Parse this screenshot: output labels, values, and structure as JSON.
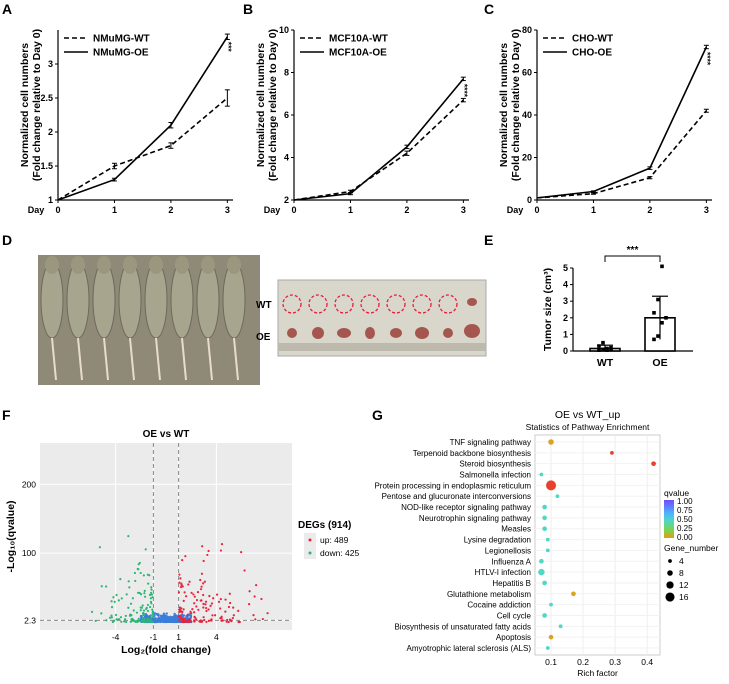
{
  "panels": {
    "A": "A",
    "B": "B",
    "C": "C",
    "D": "D",
    "E": "E",
    "F": "F",
    "G": "G"
  },
  "chart_data": [
    {
      "type": "line",
      "id": "A",
      "xlabel": "Day",
      "ylabel_line1": "Normalized cell numbers",
      "ylabel_line2": "(Fold change relative to Day 0)",
      "x": [
        0,
        1,
        2,
        3
      ],
      "xlim": [
        0,
        3.1
      ],
      "ylim": [
        1,
        3.5
      ],
      "yticks": [
        1,
        1.5,
        2,
        2.5,
        3
      ],
      "series": [
        {
          "name": "NMuMG-WT",
          "style": "dashed",
          "values": [
            1,
            1.5,
            1.8,
            2.5
          ],
          "err": [
            0,
            0.04,
            0.04,
            0.12
          ]
        },
        {
          "name": "NMuMG-OE",
          "style": "solid",
          "values": [
            1,
            1.3,
            2.1,
            3.4
          ],
          "err": [
            0,
            0.02,
            0.04,
            0.04
          ]
        }
      ],
      "significance": "***"
    },
    {
      "type": "line",
      "id": "B",
      "xlabel": "Day",
      "ylabel_line1": "Normalized cell numbers",
      "ylabel_line2": "(Fold change relative to Day 0)",
      "x": [
        0,
        1,
        2,
        3
      ],
      "xlim": [
        0,
        3.1
      ],
      "ylim": [
        2,
        10
      ],
      "yticks": [
        2,
        4,
        6,
        8,
        10
      ],
      "series": [
        {
          "name": "MCF10A-WT",
          "style": "dashed",
          "values": [
            2,
            2.4,
            4.2,
            6.7
          ],
          "err": [
            0,
            0.06,
            0.1,
            0.08
          ]
        },
        {
          "name": "MCF10A-OE",
          "style": "solid",
          "values": [
            2,
            2.3,
            4.5,
            7.7
          ],
          "err": [
            0,
            0.05,
            0.08,
            0.08
          ]
        }
      ],
      "significance": "****"
    },
    {
      "type": "line",
      "id": "C",
      "xlabel": "Day",
      "ylabel_line1": "Normalized cell numbers",
      "ylabel_line2": "(Fold change relative to Day 0)",
      "x": [
        0,
        1,
        2,
        3
      ],
      "xlim": [
        0,
        3.1
      ],
      "ylim": [
        0,
        80
      ],
      "yticks": [
        0,
        20,
        40,
        60,
        80
      ],
      "series": [
        {
          "name": "CHO-WT",
          "style": "dashed",
          "values": [
            1,
            3,
            10.5,
            42
          ],
          "err": [
            0,
            0.3,
            0.5,
            0.7
          ]
        },
        {
          "name": "CHO-OE",
          "style": "solid",
          "values": [
            1,
            4,
            15,
            72
          ],
          "err": [
            0,
            0.3,
            0.6,
            0.8
          ]
        }
      ],
      "significance": "****"
    },
    {
      "type": "bar",
      "id": "E",
      "ylabel": "Tumor size (cm³)",
      "categories": [
        "WT",
        "OE"
      ],
      "values": [
        0.15,
        2.0
      ],
      "err": [
        0.2,
        1.3
      ],
      "ylim": [
        0,
        5
      ],
      "yticks": [
        0,
        1,
        2,
        3,
        4,
        5
      ],
      "points": {
        "WT": [
          0.05,
          0.1,
          0.15,
          0.2,
          0.3,
          0.5,
          0.05,
          0.08
        ],
        "OE": [
          0.7,
          0.9,
          1.7,
          2.0,
          2.3,
          3.1,
          5.1
        ]
      },
      "significance": "***"
    },
    {
      "type": "scatter",
      "id": "F",
      "title": "OE vs WT",
      "xlabel": "Log₂(fold change)",
      "ylabel": "-Log₁₀(qvalue)",
      "xticks": [
        -4,
        -1,
        1,
        4
      ],
      "yticks": [
        "2.3",
        "100",
        "200"
      ],
      "legend_title": "DEGs (914)",
      "legend": [
        {
          "name": "up: 489"
        },
        {
          "name": "down: 425"
        }
      ]
    },
    {
      "type": "scatter",
      "id": "G",
      "title": "OE vs WT_up",
      "subtitle": "Statistics of Pathway Enrichment",
      "xlabel": "Rich factor",
      "xticks": [
        0.1,
        0.2,
        0.3,
        0.4
      ],
      "xlim": [
        0.05,
        0.44
      ],
      "pathways": [
        {
          "name": "TNF signaling pathway",
          "rich": 0.1,
          "size": 8,
          "q": 0.05
        },
        {
          "name": "Terpenoid backbone biosynthesis",
          "rich": 0.29,
          "size": 4,
          "q": 0.02
        },
        {
          "name": "Steroid biosynthesis",
          "rich": 0.42,
          "size": 6,
          "q": 0.0
        },
        {
          "name": "Salmonella infection",
          "rich": 0.07,
          "size": 4,
          "q": 0.6
        },
        {
          "name": "Protein processing in endoplasmic reticulum",
          "rich": 0.1,
          "size": 18,
          "q": 0.0
        },
        {
          "name": "Pentose and glucuronate interconversions",
          "rich": 0.12,
          "size": 4,
          "q": 0.55
        },
        {
          "name": "NOD-like receptor signaling pathway",
          "rich": 0.08,
          "size": 6,
          "q": 0.6
        },
        {
          "name": "Neurotrophin signaling pathway",
          "rich": 0.08,
          "size": 6,
          "q": 0.55
        },
        {
          "name": "Measles",
          "rich": 0.08,
          "size": 6,
          "q": 0.55
        },
        {
          "name": "Lysine degradation",
          "rich": 0.09,
          "size": 4,
          "q": 0.55
        },
        {
          "name": "Legionellosis",
          "rich": 0.09,
          "size": 4,
          "q": 0.55
        },
        {
          "name": "Influenza A",
          "rich": 0.07,
          "size": 6,
          "q": 0.6
        },
        {
          "name": "HTLV-I infection",
          "rich": 0.07,
          "size": 10,
          "q": 0.55
        },
        {
          "name": "Hepatitis B",
          "rich": 0.08,
          "size": 6,
          "q": 0.55
        },
        {
          "name": "Glutathione metabolism",
          "rich": 0.17,
          "size": 6,
          "q": 0.05
        },
        {
          "name": "Cocaine addiction",
          "rich": 0.1,
          "size": 4,
          "q": 0.55
        },
        {
          "name": "Cell cycle",
          "rich": 0.08,
          "size": 6,
          "q": 0.55
        },
        {
          "name": "Biosynthesis of unsaturated fatty acids",
          "rich": 0.13,
          "size": 4,
          "q": 0.55
        },
        {
          "name": "Apoptosis",
          "rich": 0.1,
          "size": 6,
          "q": 0.1
        },
        {
          "name": "Amyotrophic lateral sclerosis (ALS)",
          "rich": 0.09,
          "size": 4,
          "q": 0.55
        }
      ],
      "qvalue_title": "qvalue",
      "qvalue_ticks": [
        "1.00",
        "0.75",
        "0.50",
        "0.25",
        "0.00"
      ],
      "gene_title": "Gene_number",
      "gene_ticks": [
        "4",
        "8",
        "12",
        "16"
      ]
    }
  ],
  "photo_D": {
    "row_WT": "WT",
    "row_OE": "OE"
  },
  "colors": {
    "up": "#e8233c",
    "down": "#2bb673",
    "ns": "#3b7dd8"
  }
}
